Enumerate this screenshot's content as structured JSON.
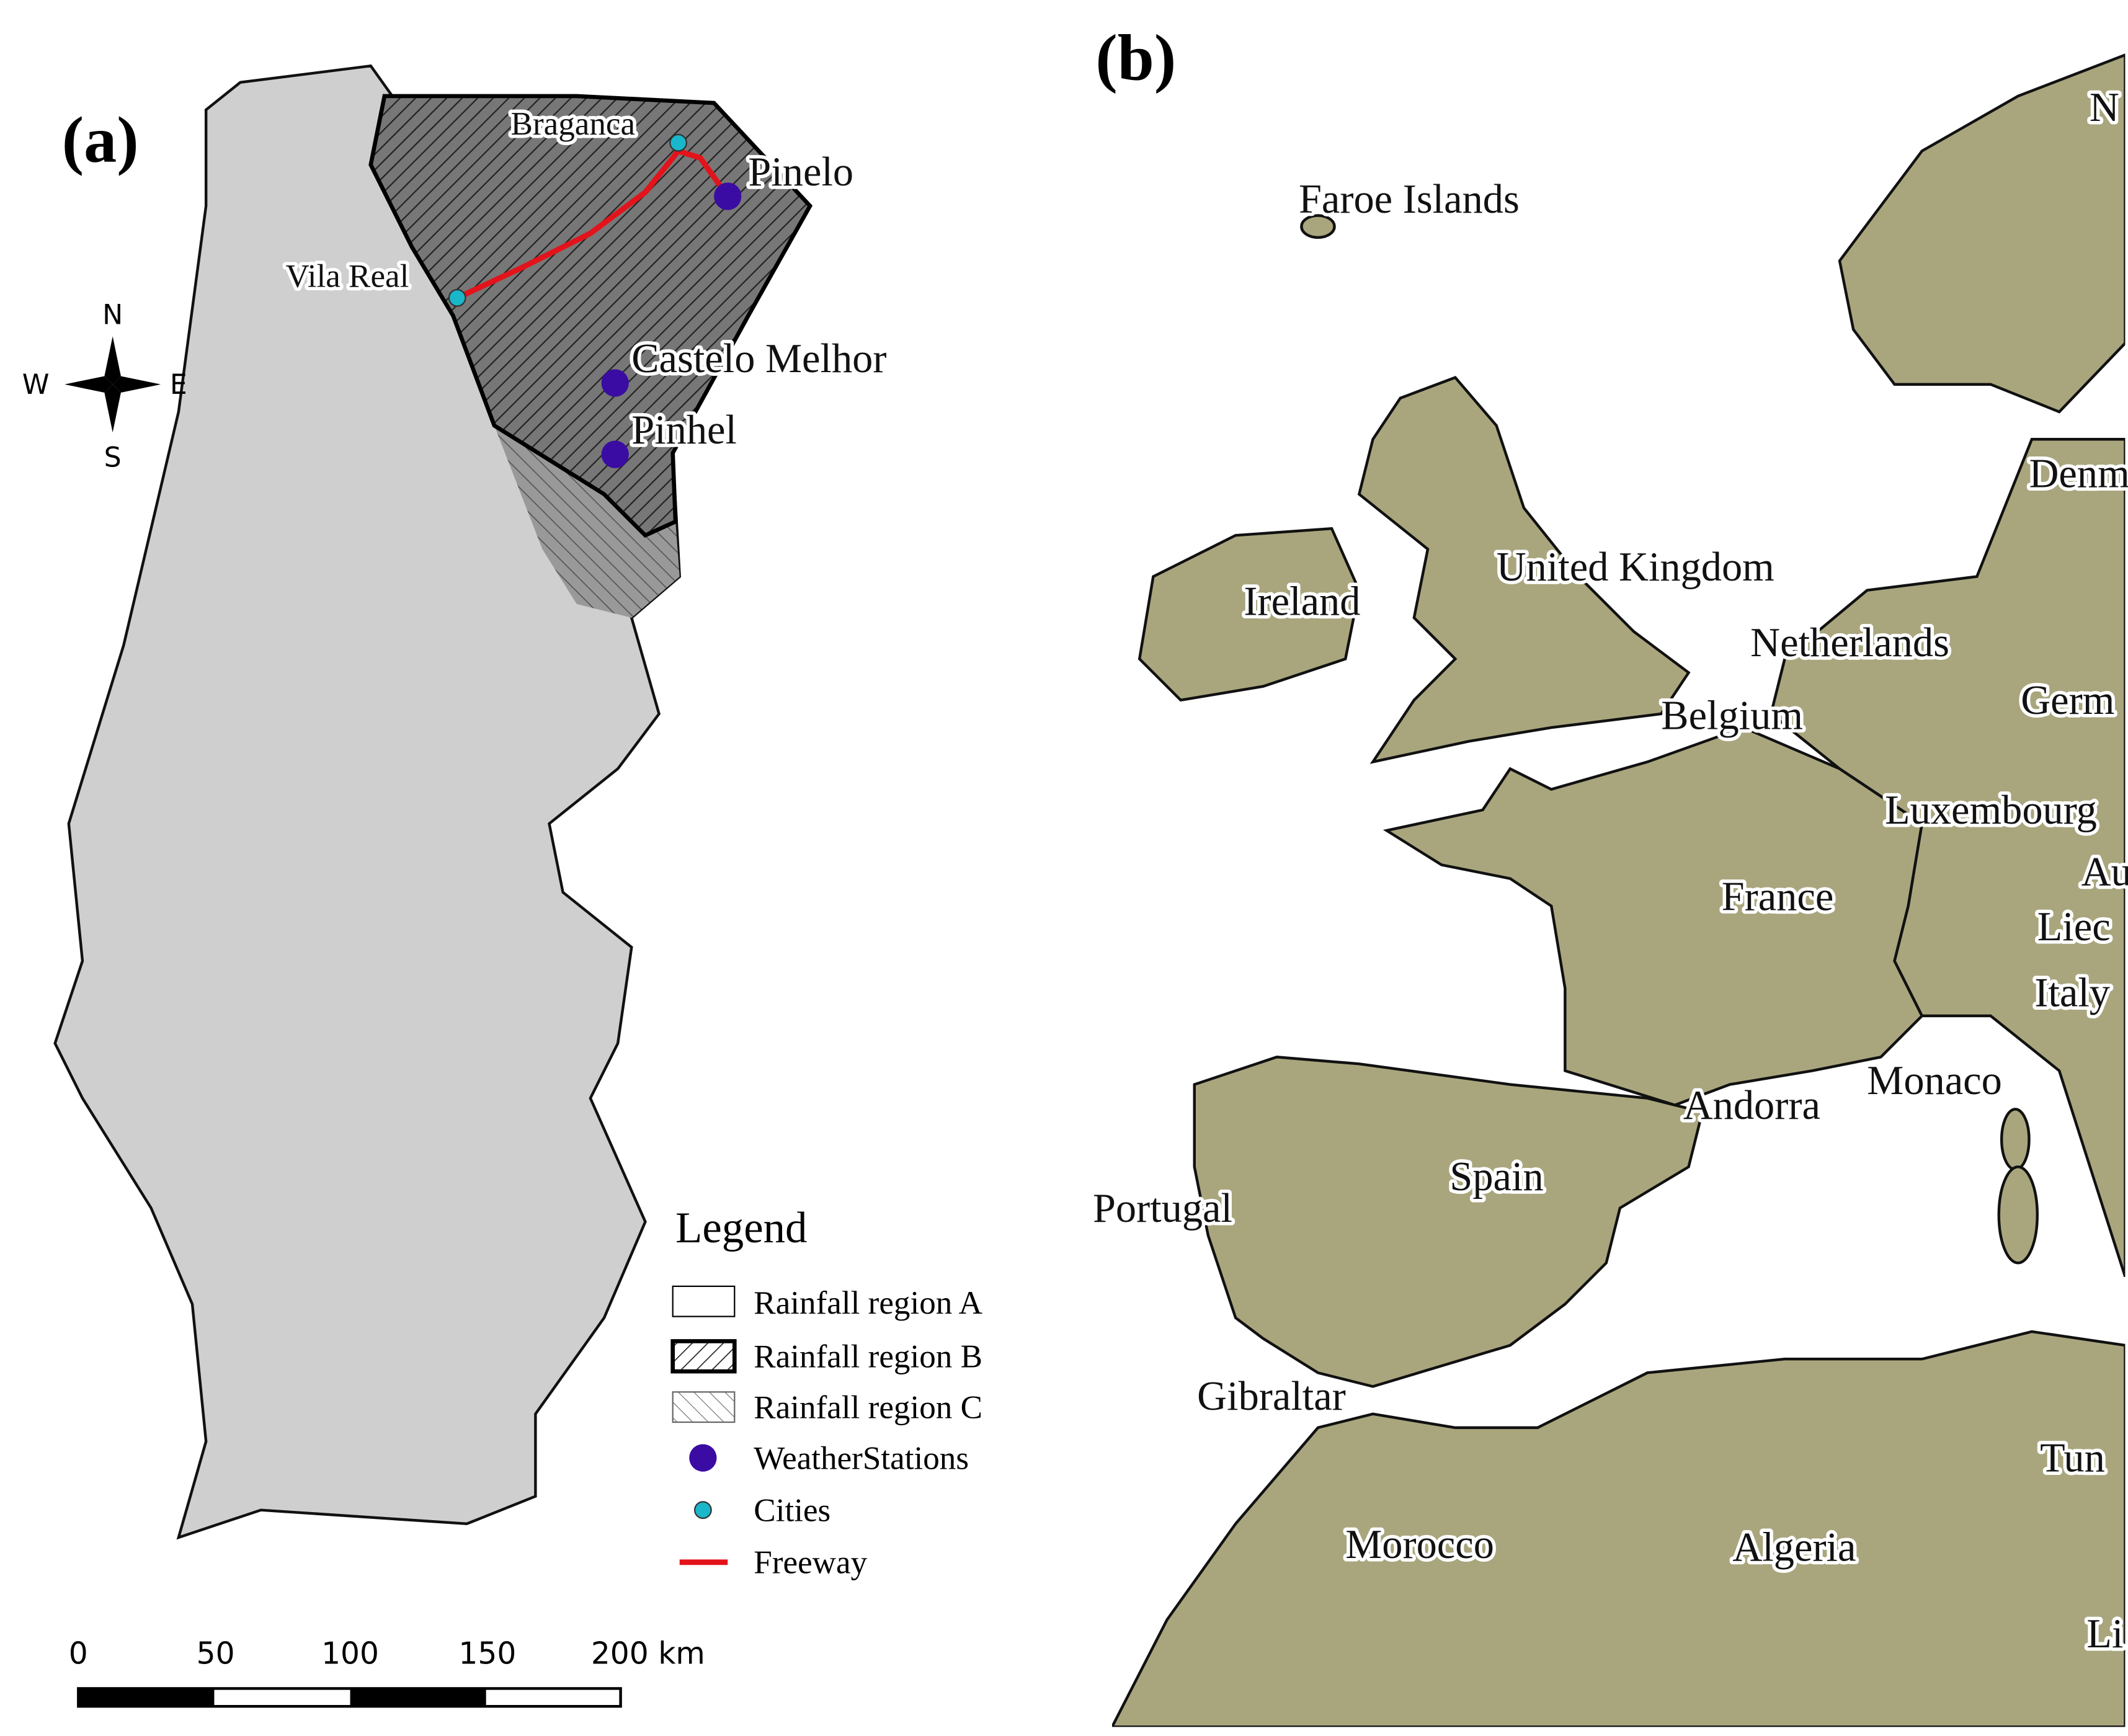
{
  "panel_a": {
    "label": "(a)",
    "cities": [
      "Braganca",
      "Vila Real"
    ],
    "stations": [
      "Pinelo",
      "Castelo Melhor",
      "Pinhel"
    ],
    "compass": {
      "north": "N",
      "west": "W",
      "east": "E",
      "south": "S"
    },
    "legend": {
      "title": "Legend",
      "items": [
        "Rainfall region A",
        "Rainfall region B",
        "Rainfall region C",
        "WeatherStations",
        "Cities",
        "Freeway"
      ]
    },
    "scale_bar": [
      "0",
      "50",
      "100",
      "150",
      "200 km"
    ]
  },
  "panel_b": {
    "label": "(b)",
    "countries": [
      "N",
      "Faroe Islands",
      "Denm",
      "United Kingdom",
      "Ireland",
      "Netherlands",
      "Belgium",
      "Germ",
      "Luxembourg",
      "Au",
      "France",
      "Liec",
      "Italy",
      "Monaco",
      "Andorra",
      "Spain",
      "Portugal",
      "Gibraltar",
      "Tun",
      "Morocco",
      "Algeria",
      "Li"
    ]
  }
}
